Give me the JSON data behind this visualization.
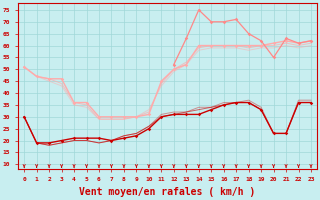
{
  "background_color": "#c8eef0",
  "grid_color": "#a0d8d8",
  "xlabel": "Vent moyen/en rafales ( km/h )",
  "xlabel_color": "#cc0000",
  "xlabel_fontsize": 7,
  "tick_color": "#cc0000",
  "yticks": [
    10,
    15,
    20,
    25,
    30,
    35,
    40,
    45,
    50,
    55,
    60,
    65,
    70,
    75
  ],
  "xticks": [
    0,
    1,
    2,
    3,
    4,
    5,
    6,
    7,
    8,
    9,
    10,
    11,
    12,
    13,
    14,
    15,
    16,
    17,
    18,
    19,
    20,
    21,
    22,
    23
  ],
  "ylim": [
    8,
    78
  ],
  "xlim": [
    -0.5,
    23.5
  ],
  "dark_red_marker_line": [
    30,
    19,
    19,
    20,
    21,
    21,
    21,
    20,
    21,
    22,
    25,
    30,
    31,
    31,
    31,
    33,
    35,
    36,
    36,
    33,
    23,
    23,
    36,
    36
  ],
  "dark_red_line2": [
    30,
    19,
    18,
    19,
    20,
    20,
    19,
    20,
    22,
    23,
    26,
    30,
    31,
    32,
    33,
    34,
    35,
    36,
    36,
    33,
    23,
    23,
    36,
    36
  ],
  "dark_red_line3": [
    30,
    19,
    18,
    19,
    20,
    20,
    19,
    20,
    22,
    23,
    26,
    31,
    32,
    32,
    34,
    34,
    36,
    36,
    37,
    34,
    23,
    23,
    37,
    37
  ],
  "pink_marker_line": [
    51,
    47,
    46,
    46,
    36,
    36,
    30,
    30,
    30,
    30,
    31,
    45,
    50,
    52,
    60,
    60,
    60,
    60,
    60,
    60,
    61,
    62,
    61,
    62
  ],
  "pink_line2": [
    51,
    47,
    46,
    44,
    36,
    35,
    29,
    29,
    29,
    30,
    32,
    44,
    50,
    53,
    59,
    60,
    60,
    60,
    59,
    60,
    60,
    61,
    60,
    61
  ],
  "pink_line3": [
    51,
    47,
    45,
    43,
    35,
    34,
    29,
    29,
    29,
    30,
    33,
    43,
    49,
    52,
    58,
    59,
    59,
    59,
    58,
    59,
    59,
    60,
    59,
    60
  ],
  "salmon_x": [
    12,
    13,
    14,
    15,
    16,
    17,
    18,
    19,
    20,
    21,
    22,
    23
  ],
  "salmon_y": [
    52,
    63,
    75,
    70,
    70,
    71,
    65,
    62,
    55,
    63,
    61,
    62
  ],
  "dark_red_color": "#cc0000",
  "pink_color": "#ffaaaa",
  "salmon_color": "#ff8888"
}
